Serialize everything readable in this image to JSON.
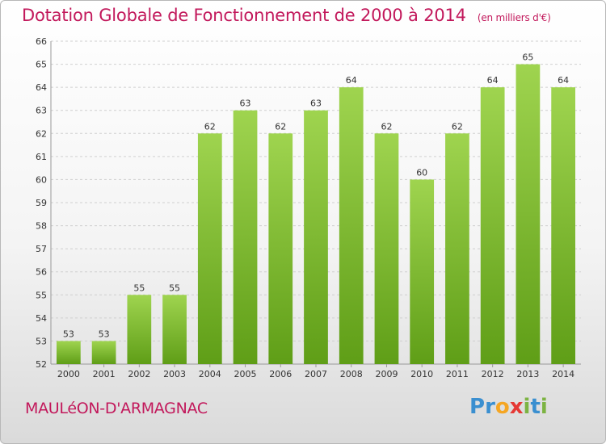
{
  "header": {
    "title": "Dotation Globale de Fonctionnement de 2000 à 2014",
    "subtitle": "(en milliers d'€)"
  },
  "footer": {
    "commune": "MAULéON-D'ARMAGNAC",
    "logo_letters": [
      {
        "char": "P",
        "color": "#3a8fd0"
      },
      {
        "char": "r",
        "color": "#3a8fd0"
      },
      {
        "char": "o",
        "color": "#f5a623"
      },
      {
        "char": "x",
        "color": "#e53935"
      },
      {
        "char": "i",
        "color": "#7cb342"
      },
      {
        "char": "t",
        "color": "#3a8fd0"
      },
      {
        "char": "i",
        "color": "#7cb342"
      }
    ]
  },
  "chart_data": {
    "type": "bar",
    "title": "Dotation Globale de Fonctionnement de 2000 à 2014",
    "categories": [
      "2000",
      "2001",
      "2002",
      "2003",
      "2004",
      "2005",
      "2006",
      "2007",
      "2008",
      "2009",
      "2010",
      "2011",
      "2012",
      "2013",
      "2014"
    ],
    "values": [
      53,
      53,
      55,
      55,
      62,
      63,
      62,
      63,
      64,
      62,
      60,
      62,
      64,
      65,
      64
    ],
    "ylim": [
      52,
      66
    ],
    "yticks": [
      52,
      53,
      54,
      55,
      56,
      57,
      58,
      59,
      60,
      61,
      62,
      63,
      64,
      65,
      66
    ],
    "grid": true,
    "bar_color": "#7cb82f"
  }
}
